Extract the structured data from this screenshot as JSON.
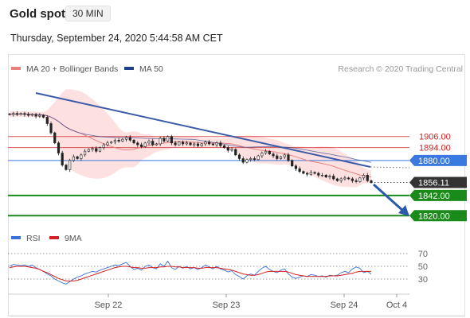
{
  "header": {
    "title": "Gold spot",
    "interval": "30 MIN",
    "datetime": "Thursday, September 24, 2020 5:44:58 AM CET"
  },
  "legend": {
    "ma20": "MA 20 + Bollinger Bands",
    "ma50": "MA 50",
    "credit": "Research © 2020 Trading Central",
    "rsi": "RSI",
    "rsi_ma": "9MA"
  },
  "colors": {
    "candle": "#222222",
    "ma20": "#e88080",
    "bollinger_fill": "#fde0e0",
    "ma50": "#1f3f8f",
    "trendline": "#3b5ba8",
    "resistance": "#d42020",
    "pivot": "#3a7ae0",
    "support": "#1a8a1a",
    "current": "#333333",
    "rsi": "#3a70d8",
    "rsi_ma": "#d42020",
    "arrow": "#2a5aa8"
  },
  "chart_data": {
    "type": "candlestick",
    "price_axis": {
      "ylim": [
        1812,
        1935
      ]
    },
    "x_labels": [
      "Sep 22",
      "Sep 23",
      "Sep 24",
      "Oct 4"
    ],
    "levels": [
      {
        "value": 1906.0,
        "label": "1906.00",
        "kind": "resistance"
      },
      {
        "value": 1894.0,
        "label": "1894.00",
        "kind": "resistance"
      },
      {
        "value": 1880.0,
        "label": "1880.00",
        "kind": "pivot"
      },
      {
        "value": 1856.11,
        "label": "1856.11",
        "kind": "current"
      },
      {
        "value": 1842.0,
        "label": "1842.00",
        "kind": "support"
      },
      {
        "value": 1820.0,
        "label": "1820.00",
        "kind": "support"
      }
    ],
    "close": [
      1930,
      1931,
      1930,
      1931,
      1930,
      1929,
      1930,
      1928,
      1929,
      1927,
      1920,
      1910,
      1899,
      1888,
      1875,
      1870,
      1880,
      1884,
      1882,
      1886,
      1890,
      1892,
      1893,
      1890,
      1894,
      1897,
      1899,
      1900,
      1902,
      1901,
      1903,
      1905,
      1902,
      1899,
      1897,
      1895,
      1899,
      1901,
      1897,
      1898,
      1904,
      1901,
      1906,
      1899,
      1897,
      1900,
      1898,
      1899,
      1897,
      1898,
      1896,
      1898,
      1900,
      1898,
      1897,
      1899,
      1896,
      1894,
      1891,
      1892,
      1886,
      1882,
      1878,
      1881,
      1882,
      1881,
      1885,
      1888,
      1890,
      1887,
      1885,
      1882,
      1884,
      1886,
      1880,
      1874,
      1871,
      1868,
      1866,
      1865,
      1867,
      1866,
      1864,
      1864,
      1862,
      1863,
      1860,
      1858,
      1860,
      1861,
      1860,
      1858,
      1857,
      1861,
      1864,
      1858,
      1856
    ],
    "rsi": {
      "levels": [
        70,
        50,
        30
      ],
      "ylim": [
        15,
        85
      ],
      "rsi": [
        50,
        53,
        52,
        51,
        52,
        50,
        52,
        48,
        45,
        42,
        38,
        35,
        30,
        27,
        24,
        22,
        26,
        30,
        33,
        35,
        38,
        40,
        42,
        41,
        44,
        46,
        48,
        50,
        52,
        51,
        54,
        56,
        50,
        45,
        47,
        44,
        50,
        52,
        48,
        46,
        54,
        50,
        58,
        48,
        45,
        50,
        47,
        50,
        46,
        48,
        45,
        48,
        52,
        49,
        46,
        50,
        46,
        44,
        41,
        43,
        37,
        34,
        30,
        35,
        38,
        36,
        42,
        47,
        50,
        45,
        42,
        40,
        44,
        46,
        38,
        33,
        31,
        33,
        35,
        34,
        37,
        36,
        34,
        35,
        33,
        36,
        35,
        36,
        40,
        42,
        40,
        46,
        49,
        47,
        40,
        42,
        38
      ],
      "ma": [
        48,
        49,
        50,
        50,
        50,
        49,
        48,
        47,
        45,
        42,
        40,
        37,
        34,
        31,
        29,
        27,
        27,
        27,
        28,
        30,
        32,
        34,
        36,
        38,
        40,
        42,
        44,
        46,
        48,
        49,
        50,
        50,
        49,
        48,
        48,
        47,
        47,
        48,
        48,
        48,
        49,
        49,
        50,
        50,
        49,
        49,
        48,
        48,
        48,
        48,
        47,
        47,
        48,
        48,
        48,
        48,
        47,
        46,
        45,
        44,
        42,
        40,
        38,
        37,
        36,
        36,
        37,
        39,
        41,
        42,
        42,
        42,
        42,
        42,
        41,
        39,
        37,
        36,
        35,
        34,
        34,
        34,
        34,
        34,
        34,
        35,
        35,
        35,
        36,
        37,
        38,
        39,
        41,
        42,
        42,
        42,
        42
      ]
    }
  }
}
